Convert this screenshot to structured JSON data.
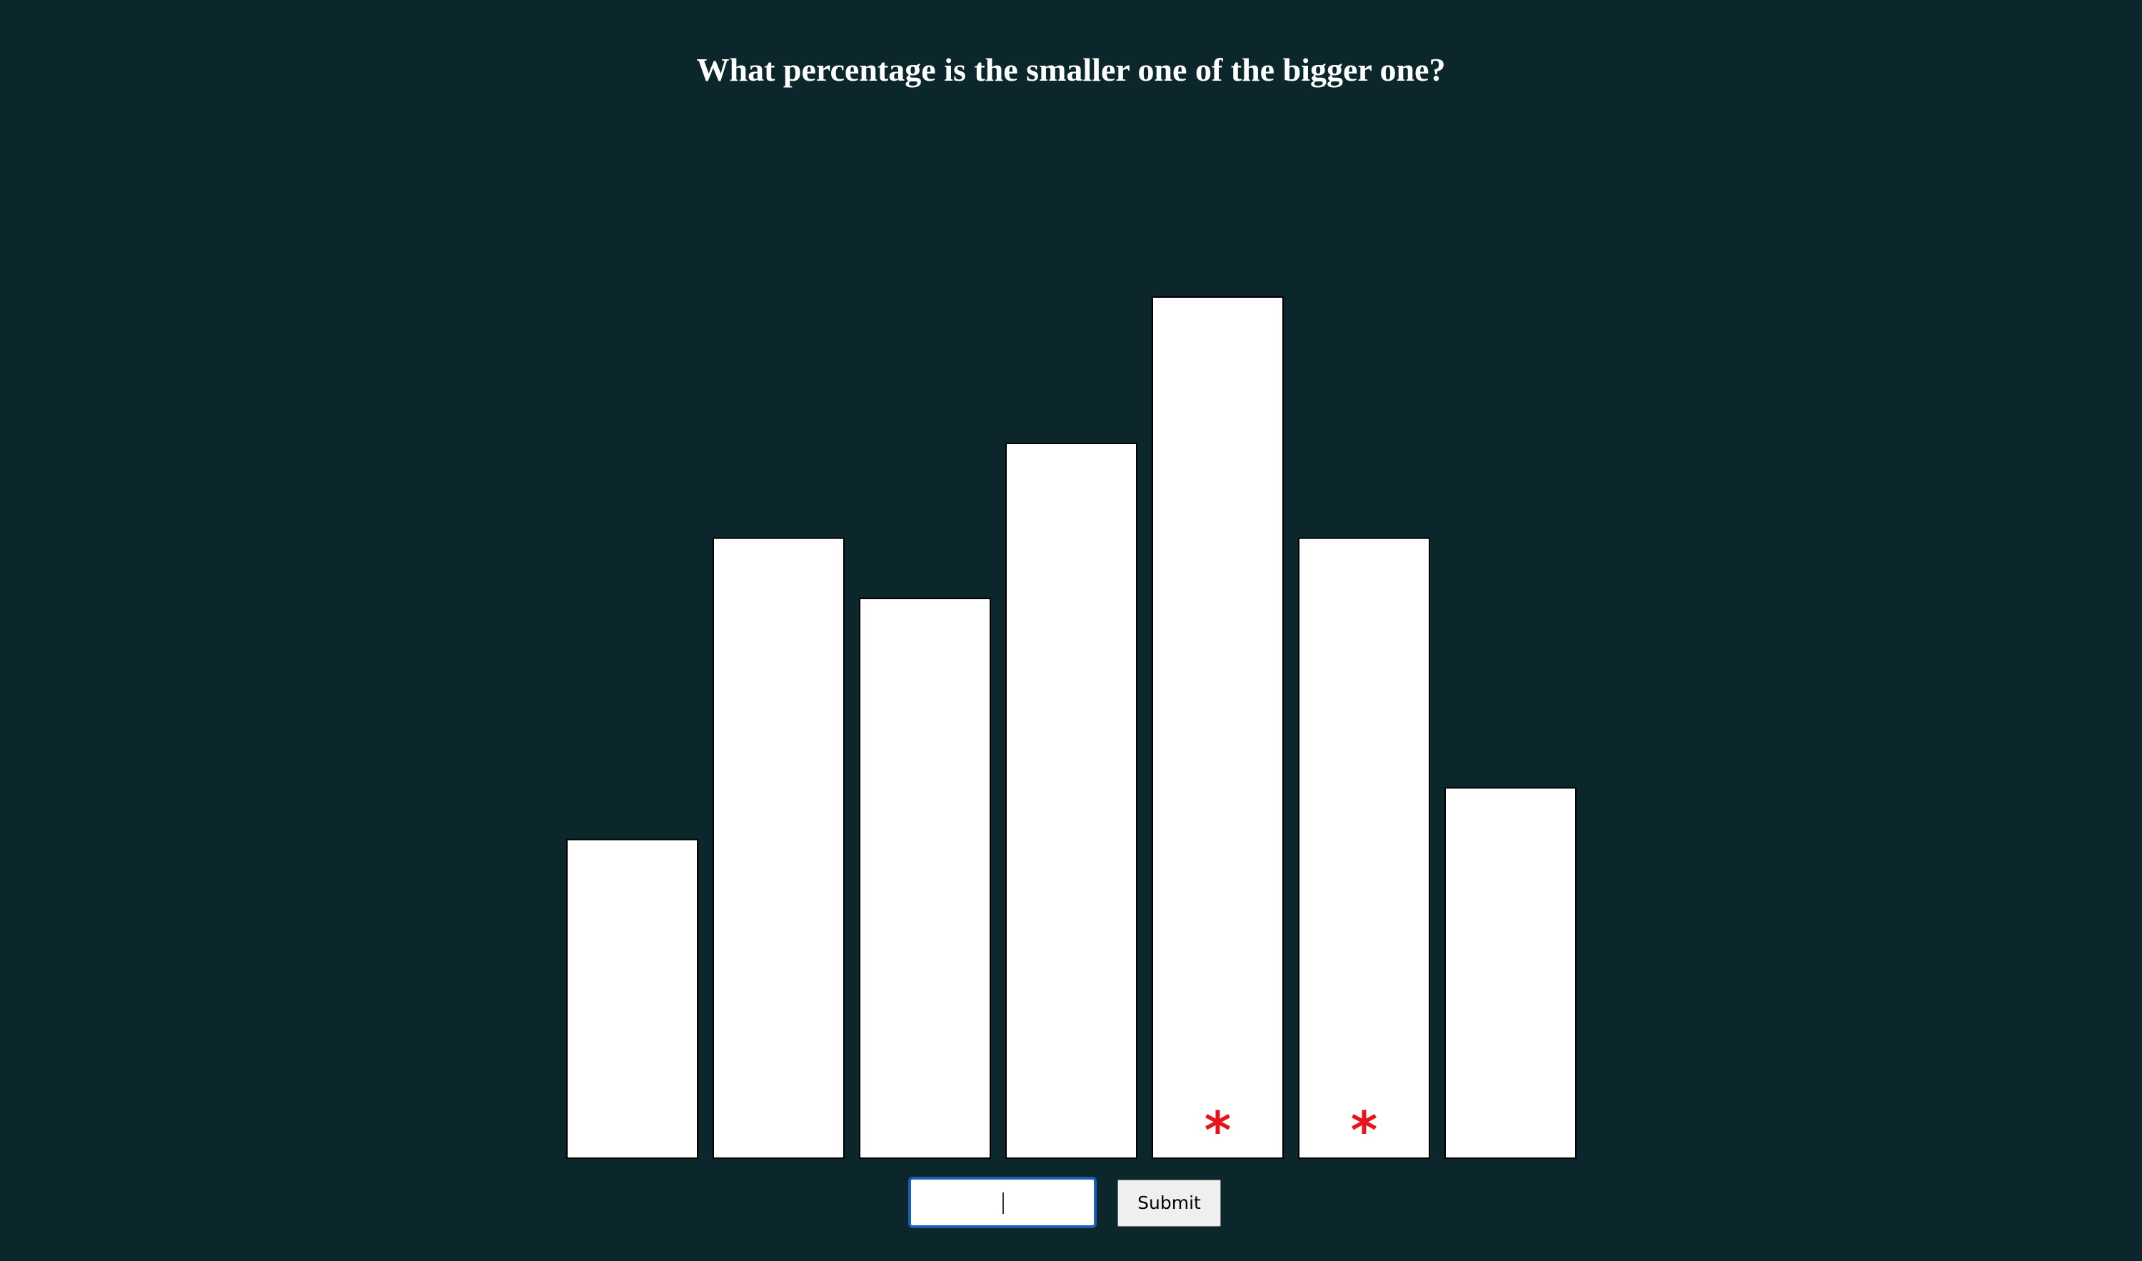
{
  "question": "What percentage is the smaller one of the bigger one?",
  "submit_label": "Submit",
  "input_value": "",
  "colors": {
    "background": "#0b272c",
    "bar_fill": "#ffffff",
    "bar_stroke": "#000000",
    "marker": "#e8141c"
  },
  "chart_data": {
    "type": "bar",
    "title": "",
    "xlabel": "",
    "ylabel": "",
    "axes_visible": false,
    "grid": false,
    "ylim": [
      0,
      100
    ],
    "values": [
      37,
      72,
      65,
      83,
      100,
      72,
      43
    ],
    "marked": [
      false,
      false,
      false,
      false,
      true,
      true,
      false
    ],
    "marker_symbol": "*"
  }
}
